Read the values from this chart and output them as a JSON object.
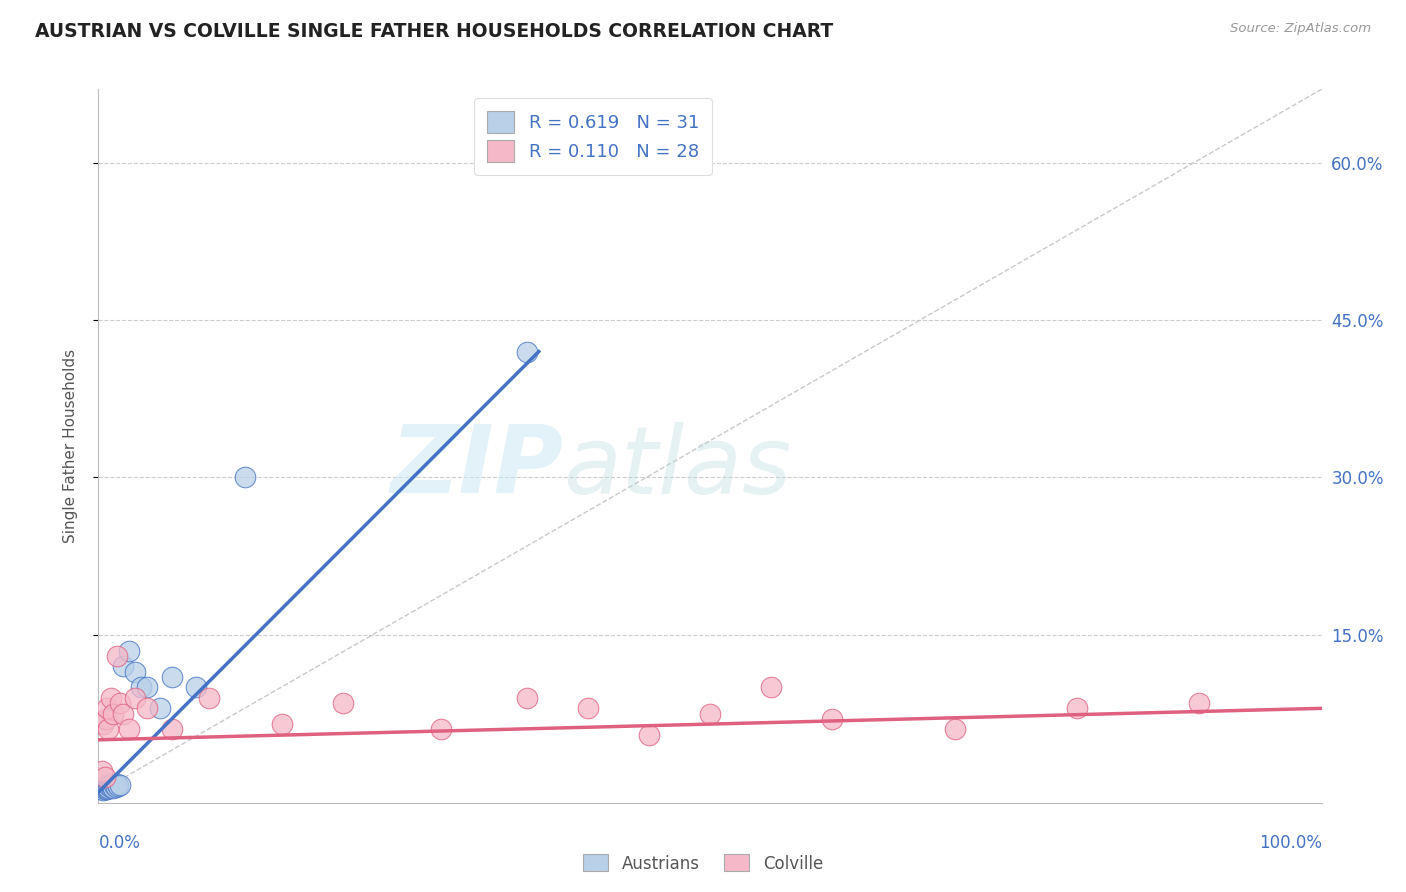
{
  "title": "AUSTRIAN VS COLVILLE SINGLE FATHER HOUSEHOLDS CORRELATION CHART",
  "source": "Source: ZipAtlas.com",
  "ylabel": "Single Father Households",
  "y_tick_labels": [
    "15.0%",
    "30.0%",
    "45.0%",
    "60.0%"
  ],
  "y_tick_values": [
    0.15,
    0.3,
    0.45,
    0.6
  ],
  "xlim": [
    0.0,
    1.0
  ],
  "ylim": [
    -0.01,
    0.67
  ],
  "legend_text1": "R = 0.619   N = 31",
  "legend_text2": "R = 0.110   N = 28",
  "color_austrians": "#b8d0e8",
  "color_colville": "#f5b8c8",
  "line_color_austrians": "#4472c4",
  "line_color_colville": "#e06080",
  "title_color": "#222222",
  "axis_label_color": "#4472c4",
  "background_color": "#ffffff",
  "grid_color": "#c8c8c8",
  "austrians_x": [
    0.002,
    0.003,
    0.004,
    0.004,
    0.005,
    0.005,
    0.006,
    0.006,
    0.007,
    0.007,
    0.008,
    0.009,
    0.01,
    0.01,
    0.011,
    0.012,
    0.013,
    0.014,
    0.015,
    0.016,
    0.018,
    0.02,
    0.025,
    0.03,
    0.035,
    0.04,
    0.05,
    0.06,
    0.08,
    0.12,
    0.35
  ],
  "austrians_y": [
    0.003,
    0.004,
    0.002,
    0.005,
    0.003,
    0.006,
    0.004,
    0.007,
    0.003,
    0.005,
    0.004,
    0.006,
    0.005,
    0.008,
    0.006,
    0.004,
    0.007,
    0.005,
    0.008,
    0.006,
    0.007,
    0.12,
    0.135,
    0.115,
    0.1,
    0.1,
    0.08,
    0.11,
    0.1,
    0.3,
    0.42
  ],
  "colville_x": [
    0.003,
    0.004,
    0.005,
    0.006,
    0.007,
    0.008,
    0.01,
    0.012,
    0.015,
    0.018,
    0.02,
    0.025,
    0.03,
    0.04,
    0.06,
    0.09,
    0.15,
    0.2,
    0.28,
    0.35,
    0.4,
    0.45,
    0.5,
    0.55,
    0.6,
    0.7,
    0.8,
    0.9
  ],
  "colville_y": [
    0.02,
    0.065,
    0.015,
    0.07,
    0.08,
    0.06,
    0.09,
    0.075,
    0.13,
    0.085,
    0.075,
    0.06,
    0.09,
    0.08,
    0.06,
    0.09,
    0.065,
    0.085,
    0.06,
    0.09,
    0.08,
    0.055,
    0.075,
    0.1,
    0.07,
    0.06,
    0.08,
    0.085
  ],
  "aus_line_x": [
    0.0,
    0.36
  ],
  "aus_line_y": [
    0.0,
    0.42
  ],
  "col_line_x": [
    0.0,
    1.0
  ],
  "col_line_y": [
    0.05,
    0.08
  ]
}
